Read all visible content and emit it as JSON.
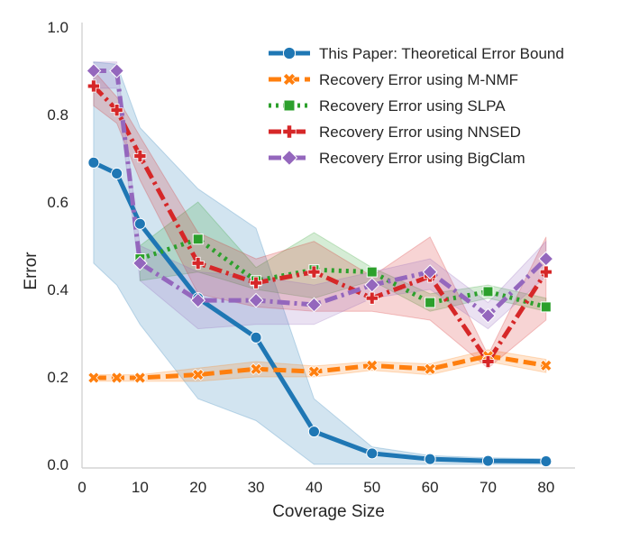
{
  "chart_data": {
    "type": "line",
    "title": "",
    "xlabel": "Coverage Size",
    "ylabel": "Error",
    "xlim": [
      0,
      85
    ],
    "ylim": [
      0.0,
      1.0
    ],
    "xticks": [
      0,
      10,
      20,
      30,
      40,
      50,
      60,
      70,
      80
    ],
    "yticks": [
      0.0,
      0.2,
      0.4,
      0.6,
      0.8,
      1.0
    ],
    "xtick_labels": [
      "0",
      "10",
      "20",
      "30",
      "40",
      "50",
      "60",
      "70",
      "80"
    ],
    "ytick_labels": [
      "0.0",
      "0.2",
      "0.4",
      "0.6",
      "0.8",
      "1.0"
    ],
    "grid": false,
    "legend_position": "top-right",
    "x": [
      2,
      6,
      10,
      20,
      30,
      40,
      50,
      60,
      70,
      80
    ],
    "series": [
      {
        "name": "This Paper: Theoretical Error Bound",
        "color": "#1f77b4",
        "marker": "circle",
        "dash": "solid",
        "values": [
          0.69,
          0.665,
          0.55,
          0.38,
          0.29,
          0.075,
          0.025,
          0.012,
          0.008,
          0.007
        ],
        "band_low": [
          0.46,
          0.41,
          0.32,
          0.15,
          0.1,
          0.0,
          0.0,
          0.0,
          0.0,
          0.0
        ],
        "band_high": [
          0.92,
          0.915,
          0.77,
          0.63,
          0.54,
          0.15,
          0.04,
          0.02,
          0.015,
          0.013
        ]
      },
      {
        "name": "Recovery Error using M-NMF",
        "color": "#ff7f0e",
        "marker": "x",
        "dash": "dashed",
        "values": [
          0.198,
          0.198,
          0.198,
          0.205,
          0.218,
          0.212,
          0.226,
          0.218,
          0.248,
          0.226
        ],
        "band_low": [
          0.19,
          0.19,
          0.19,
          0.19,
          0.2,
          0.2,
          0.215,
          0.205,
          0.235,
          0.21
        ],
        "band_high": [
          0.205,
          0.205,
          0.205,
          0.22,
          0.235,
          0.225,
          0.235,
          0.23,
          0.262,
          0.24
        ]
      },
      {
        "name": "Recovery Error using SLPA",
        "color": "#2ca02c",
        "marker": "square",
        "dash": "dotted",
        "values": [
          null,
          null,
          0.47,
          0.515,
          0.42,
          0.445,
          0.44,
          0.37,
          0.395,
          0.36
        ],
        "band_low": [
          null,
          null,
          0.42,
          0.44,
          0.4,
          0.38,
          0.42,
          0.35,
          0.38,
          0.35
        ],
        "band_high": [
          null,
          null,
          0.5,
          0.6,
          0.45,
          0.53,
          0.45,
          0.39,
          0.41,
          0.38
        ]
      },
      {
        "name": "Recovery Error using NNSED",
        "color": "#d62728",
        "marker": "plus",
        "dash": "dashdot",
        "values": [
          0.865,
          0.81,
          0.705,
          0.46,
          0.415,
          0.44,
          0.38,
          0.43,
          0.235,
          0.44
        ],
        "band_low": [
          0.82,
          0.78,
          0.65,
          0.39,
          0.36,
          0.35,
          0.35,
          0.33,
          0.22,
          0.33
        ],
        "band_high": [
          0.9,
          0.84,
          0.75,
          0.53,
          0.47,
          0.51,
          0.43,
          0.52,
          0.25,
          0.52
        ]
      },
      {
        "name": "Recovery Error using BigClam",
        "color": "#9467bd",
        "marker": "diamond",
        "dash": "dashdot",
        "values": [
          0.9,
          0.9,
          0.46,
          0.375,
          0.375,
          0.365,
          0.41,
          0.44,
          0.34,
          0.47
        ],
        "band_low": [
          0.86,
          0.86,
          0.42,
          0.31,
          0.32,
          0.32,
          0.38,
          0.4,
          0.31,
          0.43
        ],
        "band_high": [
          0.92,
          0.92,
          0.5,
          0.44,
          0.43,
          0.41,
          0.44,
          0.47,
          0.37,
          0.51
        ]
      }
    ]
  }
}
